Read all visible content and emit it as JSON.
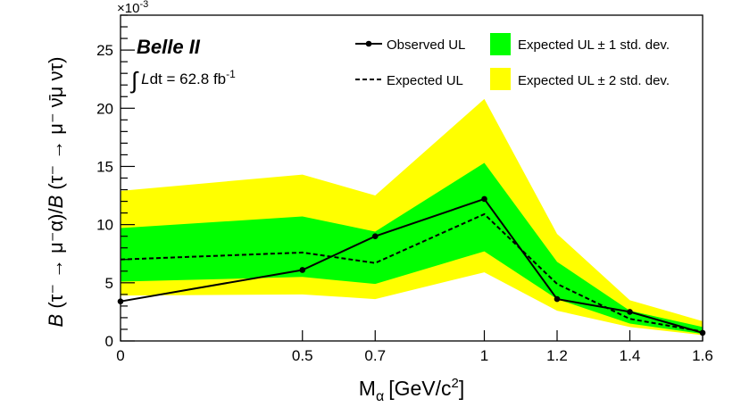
{
  "chart_data": {
    "type": "line",
    "experiment": "Belle II",
    "luminosity_prefix": "∫",
    "luminosity_label": "L",
    "luminosity_rest": "dt = 62.8 fb",
    "luminosity_exp": "-1",
    "scale_multiplier": "×10",
    "scale_exponent": "-3",
    "xlabel": "M",
    "xlabel_sub": "α",
    "xlabel_unit": "[GeV/c",
    "xlabel_unit_exp": "2",
    "xlabel_unit_close": "]",
    "ylabel": "B (τ⁻ → μ⁻α)/B (τ⁻ → μ⁻ ν̄μ ντ)",
    "xlim": [
      0,
      1.6
    ],
    "ylim": [
      0,
      28
    ],
    "x": [
      0,
      0.5,
      0.7,
      1.0,
      1.2,
      1.4,
      1.6
    ],
    "x_ticks": [
      0,
      0.5,
      0.7,
      1,
      1.2,
      1.4,
      1.6
    ],
    "x_tick_labels": [
      "0",
      "0.5",
      "0.7",
      "1",
      "1.2",
      "1.4",
      "1.6"
    ],
    "y_ticks": [
      0,
      5,
      10,
      15,
      20,
      25
    ],
    "y_tick_labels": [
      "0",
      "5",
      "10",
      "15",
      "20",
      "25"
    ],
    "series": [
      {
        "name": "Observed UL",
        "style": "solid-markers",
        "color": "#000000",
        "values": [
          3.4,
          6.1,
          9.0,
          12.2,
          3.6,
          2.5,
          0.7
        ]
      },
      {
        "name": "Expected UL",
        "style": "dashed",
        "color": "#000000",
        "values": [
          7.0,
          7.6,
          6.7,
          10.9,
          4.9,
          1.9,
          0.8
        ]
      }
    ],
    "bands": [
      {
        "name": "Expected UL ± 2 std. dev.",
        "color": "#ffff00",
        "lower": [
          3.9,
          4.0,
          3.6,
          5.9,
          2.6,
          1.2,
          0.5
        ],
        "upper": [
          12.9,
          14.3,
          12.5,
          20.8,
          9.2,
          3.5,
          1.7
        ]
      },
      {
        "name": "Expected UL ± 1 std. dev.",
        "color": "#00ff00",
        "lower": [
          5.1,
          5.5,
          4.9,
          7.7,
          3.6,
          1.5,
          0.6
        ],
        "upper": [
          9.7,
          10.7,
          9.4,
          15.3,
          6.8,
          2.6,
          1.2
        ]
      }
    ],
    "legend": [
      {
        "label": "Observed UL",
        "kind": "marker-line"
      },
      {
        "label": "Expected UL ± 1 std. dev.",
        "kind": "box",
        "color": "#00ff00"
      },
      {
        "label": "Expected UL",
        "kind": "dashed-line"
      },
      {
        "label": "Expected UL ± 2 std. dev.",
        "kind": "box",
        "color": "#ffff00"
      }
    ],
    "legend_position": "top-right"
  }
}
